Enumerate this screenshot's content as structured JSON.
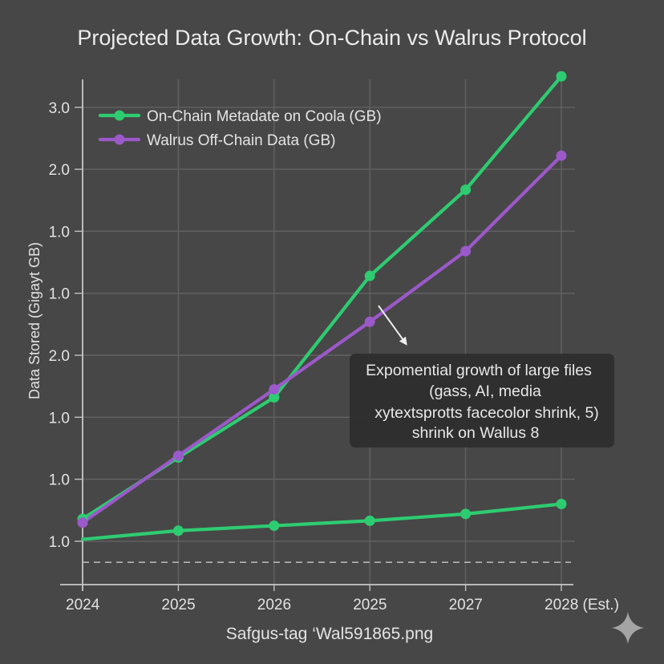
{
  "title": "Projected Data Growth: On-Chain vs Walrus Protocol",
  "source_caption": "Safgus-tag ‘Wal591865.png",
  "watermark": {
    "icon": "sparkle-icon",
    "color": "#a4a4a4"
  },
  "chart_data": {
    "type": "line",
    "title": "Projected Data Growth: On-Chain vs Walrus Protocol",
    "xlabel": "",
    "ylabel": "Data Stored (Gigayt GB)",
    "categories": [
      "2024",
      "2025",
      "2026",
      "2025",
      "2027",
      "2028 (Est.)"
    ],
    "y_ticks": [
      {
        "value": 0,
        "label": "1.0"
      },
      {
        "value": 1,
        "label": "1.0"
      },
      {
        "value": 2,
        "label": "1.0"
      },
      {
        "value": 3,
        "label": "2.0"
      },
      {
        "value": 4,
        "label": "1.0"
      },
      {
        "value": 5,
        "label": "1.0"
      },
      {
        "value": 6,
        "label": "2.0"
      },
      {
        "value": 7,
        "label": "3.0"
      }
    ],
    "ylim": [
      -0.7,
      7.45
    ],
    "grid": true,
    "legend": "top-left",
    "series": [
      {
        "name": "On-Chain Metadate on Coola (GB)",
        "color": "#2ecc71",
        "values": [
          0.36,
          1.35,
          2.32,
          4.28,
          5.67,
          7.5
        ]
      },
      {
        "name": "Walrus Off-Chain Data (GB)",
        "color": "#9b59c9",
        "values": [
          0.3,
          1.38,
          2.45,
          3.54,
          4.68,
          6.22
        ]
      },
      {
        "name": "",
        "color": "#2ecc71",
        "values": [
          0.03,
          0.17,
          0.25,
          0.33,
          0.44,
          0.6
        ],
        "markers": [
          false,
          true,
          true,
          true,
          true,
          true
        ]
      }
    ],
    "reference_line": {
      "value": -0.34,
      "style": "dashed",
      "color": "#b4b4b4"
    },
    "annotation": {
      "lines": [
        "Expomential growth of large files",
        "(gass, AI, media",
        "xytextsprotts facecolor shrink, 5)",
        "shrink on Wallus 8"
      ],
      "arrow": {
        "from": [
          3.09,
          3.8
        ],
        "to": [
          3.38,
          3.18
        ]
      },
      "box_color": "#2d2d2d"
    }
  }
}
